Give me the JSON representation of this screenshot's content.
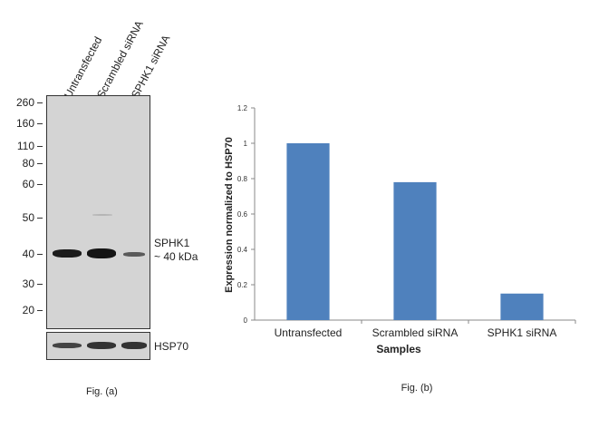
{
  "figure_a": {
    "lanes": [
      "Untransfected",
      "Scrambled siRNA",
      "SPHK1 siRNA"
    ],
    "markers": [
      "260",
      "160",
      "110",
      "80",
      "60",
      "50",
      "40",
      "30",
      "20"
    ],
    "target_label": "SPHK1",
    "target_size": "~ 40 kDa",
    "control_label": "HSP70",
    "caption": "Fig. (a)"
  },
  "chart_data": {
    "type": "bar",
    "categories": [
      "Untransfected",
      "Scrambled siRNA",
      "SPHK1 siRNA"
    ],
    "values": [
      1.0,
      0.78,
      0.15
    ],
    "xlabel": "Samples",
    "ylabel": "Expression normalized to HSP70",
    "ylim": [
      0,
      1.2
    ],
    "yticks": [
      "0",
      "0.2",
      "0.4",
      "0.6",
      "0.8",
      "1",
      "1.2"
    ],
    "grid": false,
    "bar_color": "#4f81bd",
    "caption": "Fig. (b)"
  }
}
